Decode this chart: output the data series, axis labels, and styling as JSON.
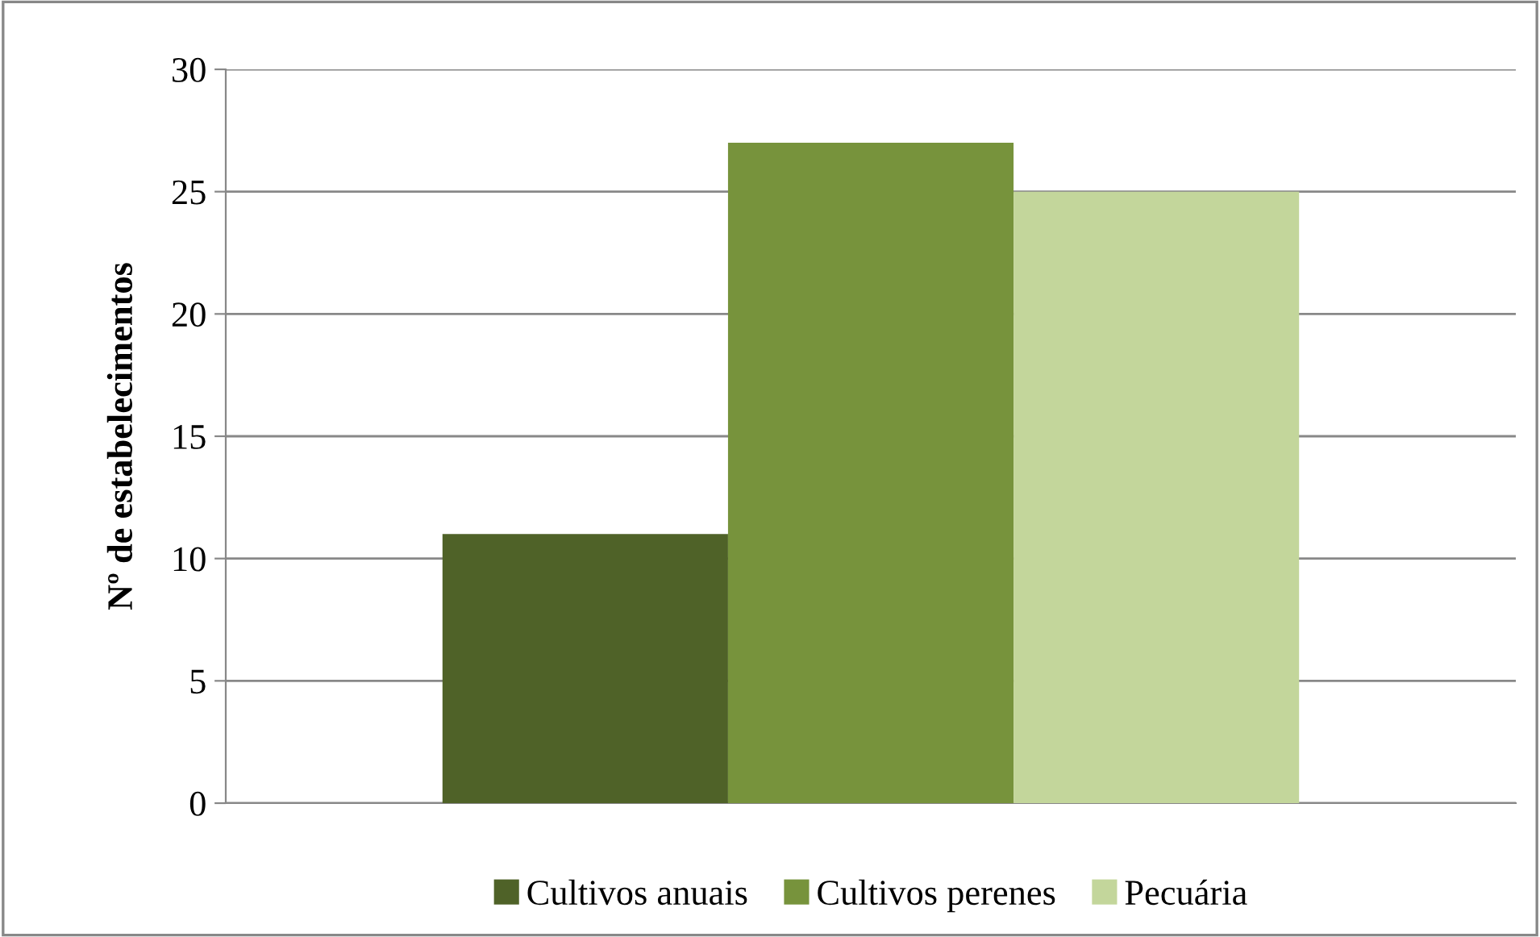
{
  "chart_data": {
    "type": "bar",
    "ylabel": "Nº de estabelecimentos",
    "categories": [
      null
    ],
    "series": [
      {
        "name": "Cultivos anuais",
        "color": "#4f6228",
        "values": [
          11
        ]
      },
      {
        "name": "Cultivos perenes",
        "color": "#77933c",
        "values": [
          27
        ]
      },
      {
        "name": "Pecuária",
        "color": "#c3d69b",
        "values": [
          25
        ]
      }
    ],
    "ylim": [
      0,
      30
    ],
    "yticks": [
      0,
      5,
      10,
      15,
      20,
      25,
      30
    ],
    "grid": "y",
    "legend": "bottom"
  }
}
